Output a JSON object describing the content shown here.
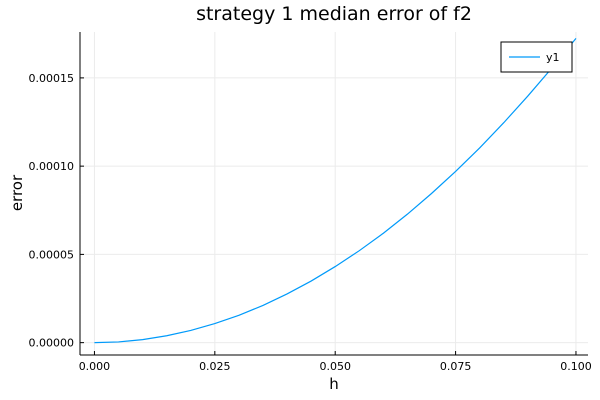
{
  "chart_data": {
    "type": "line",
    "title": "strategy 1 median error of f2",
    "xlabel": "h",
    "ylabel": "error",
    "xlim": [
      -0.003,
      0.1025
    ],
    "ylim": [
      -7e-06,
      0.000176
    ],
    "xticks": [
      0.0,
      0.025,
      0.05,
      0.075,
      0.1
    ],
    "xtick_labels": [
      "0.000",
      "0.025",
      "0.050",
      "0.075",
      "0.100"
    ],
    "yticks": [
      0.0,
      5e-05,
      0.0001,
      0.00015
    ],
    "ytick_labels": [
      "0.00000",
      "0.00005",
      "0.00010",
      "0.00015"
    ],
    "grid": true,
    "legend_position": "top-right",
    "series": [
      {
        "name": "y1",
        "color": "#009AFA",
        "x": [
          0.0,
          0.005,
          0.01,
          0.015,
          0.02,
          0.025,
          0.03,
          0.035,
          0.04,
          0.045,
          0.05,
          0.055,
          0.06,
          0.065,
          0.07,
          0.075,
          0.08,
          0.085,
          0.09,
          0.095,
          0.1
        ],
        "y": [
          0.0,
          4e-07,
          1.7e-06,
          3.9e-06,
          6.9e-06,
          1.08e-05,
          1.55e-05,
          2.11e-05,
          2.76e-05,
          3.49e-05,
          4.31e-05,
          5.21e-05,
          6.2e-05,
          7.28e-05,
          8.45e-05,
          9.7e-05,
          0.0001103,
          0.0001246,
          0.0001397,
          0.0001556,
          0.0001724
        ]
      }
    ]
  }
}
